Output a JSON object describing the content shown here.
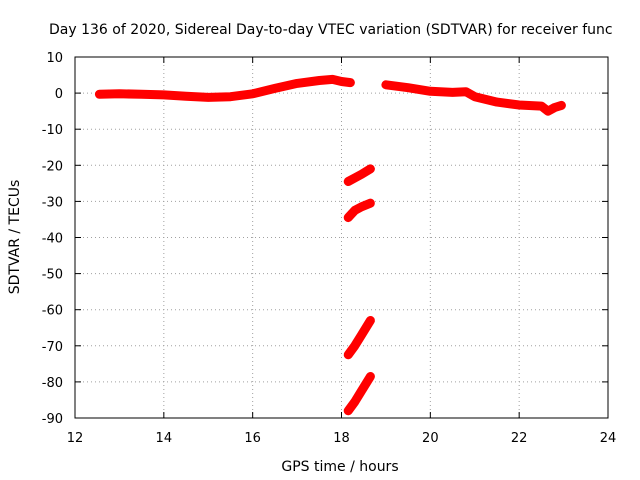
{
  "chart_data": {
    "type": "scatter",
    "title": "Day 136 of 2020, Sidereal Day-to-day VTEC variation (SDTVAR) for receiver func",
    "xlabel": "GPS time / hours",
    "ylabel": "SDTVAR / TECUs",
    "xlim": [
      12,
      24
    ],
    "ylim": [
      -90,
      10
    ],
    "x_ticks": [
      "12",
      "14",
      "16",
      "18",
      "20",
      "22",
      "24"
    ],
    "y_ticks": [
      "10",
      "0",
      "-10",
      "-20",
      "-30",
      "-40",
      "-50",
      "-60",
      "-70",
      "-80",
      "-90"
    ],
    "grid": true,
    "color": "#ff0000",
    "series": [
      {
        "name": "main-arc-1",
        "x": [
          12.55,
          13.0,
          13.5,
          14.0,
          14.5,
          15.0,
          15.5,
          16.0,
          16.5,
          17.0,
          17.5,
          17.8,
          18.0,
          18.2
        ],
        "y": [
          -0.3,
          -0.2,
          -0.3,
          -0.5,
          -0.9,
          -1.2,
          -1.0,
          -0.2,
          1.3,
          2.7,
          3.5,
          3.8,
          3.2,
          2.9
        ]
      },
      {
        "name": "main-arc-2",
        "x": [
          19.0,
          19.5,
          20.0,
          20.5,
          20.8,
          21.0,
          21.5,
          22.0,
          22.5,
          22.65,
          22.8,
          22.95
        ],
        "y": [
          2.3,
          1.5,
          0.5,
          0.2,
          0.4,
          -1.0,
          -2.5,
          -3.3,
          -3.6,
          -5.0,
          -4.0,
          -3.4
        ]
      },
      {
        "name": "segment-1",
        "x": [
          18.15,
          18.3,
          18.45,
          18.65
        ],
        "y": [
          -24.5,
          -23.5,
          -22.5,
          -21.0
        ]
      },
      {
        "name": "segment-2",
        "x": [
          18.15,
          18.3,
          18.45,
          18.65
        ],
        "y": [
          -34.5,
          -32.5,
          -31.5,
          -30.5
        ]
      },
      {
        "name": "segment-3",
        "x": [
          18.15,
          18.3,
          18.45,
          18.65
        ],
        "y": [
          -72.5,
          -70.0,
          -67.0,
          -63.0
        ]
      },
      {
        "name": "segment-4",
        "x": [
          18.15,
          18.3,
          18.45,
          18.65
        ],
        "y": [
          -88.0,
          -85.5,
          -82.5,
          -78.5
        ]
      }
    ]
  }
}
